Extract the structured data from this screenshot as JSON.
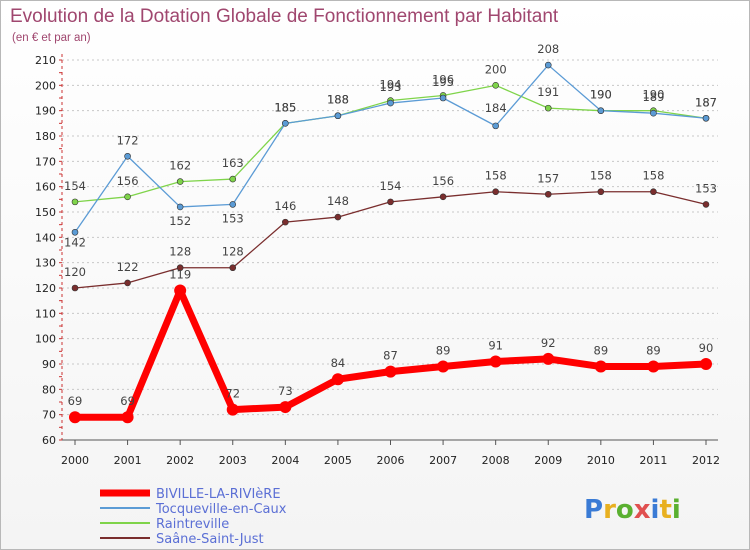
{
  "chart_data": {
    "type": "line",
    "title": "Evolution de la Dotation Globale de Fonctionnement par Habitant",
    "subtitle": "(en € et par an)",
    "x": [
      "2000",
      "2001",
      "2002",
      "2003",
      "2004",
      "2005",
      "2006",
      "2007",
      "2008",
      "2009",
      "2010",
      "2011",
      "2012"
    ],
    "ylim": [
      60,
      210
    ],
    "yticks": [
      60,
      70,
      80,
      90,
      100,
      110,
      120,
      130,
      140,
      150,
      160,
      170,
      180,
      190,
      200,
      210
    ],
    "grid": "horizontal-dotted",
    "legend": "bottom-left",
    "series": [
      {
        "name": "BIVILLE-LA-RIVIèRE",
        "color": "#ff0000",
        "values": [
          69,
          69,
          119,
          72,
          73,
          84,
          87,
          89,
          91,
          92,
          89,
          89,
          90
        ],
        "labels": [
          "69",
          "69",
          "119",
          "72",
          "73",
          "84",
          "87",
          "89",
          "91",
          "92",
          "89",
          "89",
          "90"
        ]
      },
      {
        "name": "Tocqueville-en-Caux",
        "color": "#5b9bd5",
        "values": [
          142,
          172,
          152,
          153,
          185,
          188,
          193,
          195,
          184,
          208,
          190,
          189,
          187
        ],
        "labels": [
          "142",
          "172",
          "152",
          "153",
          "185",
          "188",
          "193",
          "195",
          "184",
          "208",
          "190",
          "189",
          "187"
        ]
      },
      {
        "name": "Raintreville",
        "color": "#7fd44a",
        "values": [
          154,
          156,
          162,
          163,
          185,
          188,
          194,
          196,
          200,
          191,
          190,
          190,
          187
        ],
        "labels": [
          "154",
          "156",
          "162",
          "163",
          "185",
          "188",
          "194",
          "196",
          "200",
          "191",
          "190",
          "190",
          "187"
        ]
      },
      {
        "name": "Saâne-Saint-Just",
        "color": "#7a2e2e",
        "values": [
          120,
          122,
          128,
          128,
          146,
          148,
          154,
          156,
          158,
          157,
          158,
          158,
          153
        ],
        "labels": [
          "120",
          "122",
          "128",
          "128",
          "146",
          "148",
          "154",
          "156",
          "158",
          "157",
          "158",
          "158",
          "153"
        ]
      }
    ]
  },
  "logo": {
    "text": "Proxiti"
  }
}
